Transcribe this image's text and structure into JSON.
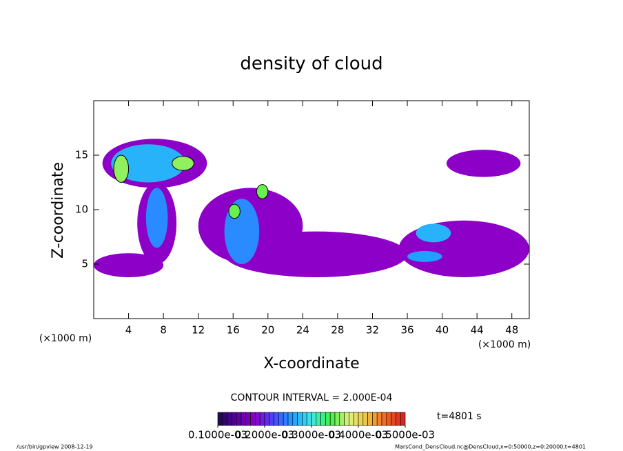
{
  "chart_data": {
    "type": "contour",
    "title": "density of cloud",
    "x_label": "X-coordinate",
    "y_label": "Z-coordinate",
    "x_unit": "(×1000 m)",
    "y_unit": "(×1000 m)",
    "xlim": [
      0,
      50
    ],
    "xticks": [
      4,
      8,
      12,
      16,
      20,
      24,
      28,
      32,
      36,
      40,
      44,
      48
    ],
    "ylim": [
      0,
      20
    ],
    "yticks": [
      5,
      10,
      15
    ],
    "contour_interval": "CONTOUR INTERVAL = 2.000E-04",
    "time_label": "t=4801 s",
    "colorbar_lim": [
      0.0001,
      0.0005
    ],
    "colorbar_ticks": [
      {
        "value": 0.0001,
        "label": "0.1000e-03"
      },
      {
        "value": 0.0002,
        "label": "0.2000e-03"
      },
      {
        "value": 0.0003,
        "label": "0.3000e-03"
      },
      {
        "value": 0.0004,
        "label": "0.4000e-03"
      },
      {
        "value": 0.0005,
        "label": "0.5000e-03"
      }
    ],
    "colormap": [
      "#1a0a4a",
      "#5a00a0",
      "#8c00c8",
      "#4848ff",
      "#20a0ff",
      "#40e8e8",
      "#40f040",
      "#e0f080",
      "#f0c040",
      "#f06020",
      "#d02020"
    ],
    "cells": [
      {
        "x": [
          1,
          13
        ],
        "z": [
          12,
          16.5
        ],
        "value": 0.00018
      },
      {
        "x": [
          0,
          8
        ],
        "z": [
          3.8,
          6
        ],
        "value": 0.00018
      },
      {
        "x": [
          5,
          9.5
        ],
        "z": [
          5,
          12.5
        ],
        "value": 0.00018
      },
      {
        "x": [
          12,
          24
        ],
        "z": [
          5,
          12
        ],
        "value": 0.00018
      },
      {
        "x": [
          15,
          36
        ],
        "z": [
          3.8,
          8
        ],
        "value": 0.00018
      },
      {
        "x": [
          35,
          50
        ],
        "z": [
          3.8,
          9
        ],
        "value": 0.00018
      },
      {
        "x": [
          40.5,
          49
        ],
        "z": [
          13,
          15.5
        ],
        "value": 0.00018
      },
      {
        "x": [
          2,
          10.5
        ],
        "z": [
          12.5,
          16
        ],
        "value": 0.00027
      },
      {
        "x": [
          6,
          8.5
        ],
        "z": [
          6.5,
          12
        ],
        "value": 0.00025
      },
      {
        "x": [
          15,
          19
        ],
        "z": [
          5,
          11
        ],
        "value": 0.00025
      },
      {
        "x": [
          37,
          41
        ],
        "z": [
          7,
          8.7
        ],
        "value": 0.00027
      },
      {
        "x": [
          36,
          40
        ],
        "z": [
          5.2,
          6.2
        ],
        "value": 0.00026
      },
      {
        "x": [
          2.3,
          4
        ],
        "z": [
          12.5,
          15
        ],
        "value": 0.00036
      },
      {
        "x": [
          9,
          11.5
        ],
        "z": [
          13.6,
          14.9
        ],
        "value": 0.00036
      },
      {
        "x": [
          15.5,
          16.8
        ],
        "z": [
          9.2,
          10.5
        ],
        "value": 0.00035
      },
      {
        "x": [
          18.7,
          20
        ],
        "z": [
          11,
          12.3
        ],
        "value": 0.00035
      }
    ],
    "footer_left": "/usr/bin/gpview  2008-12-19",
    "footer_right": "MarsCond_DensCloud.nc@DensCloud,x=0:50000,z=0:20000,t=4801"
  }
}
